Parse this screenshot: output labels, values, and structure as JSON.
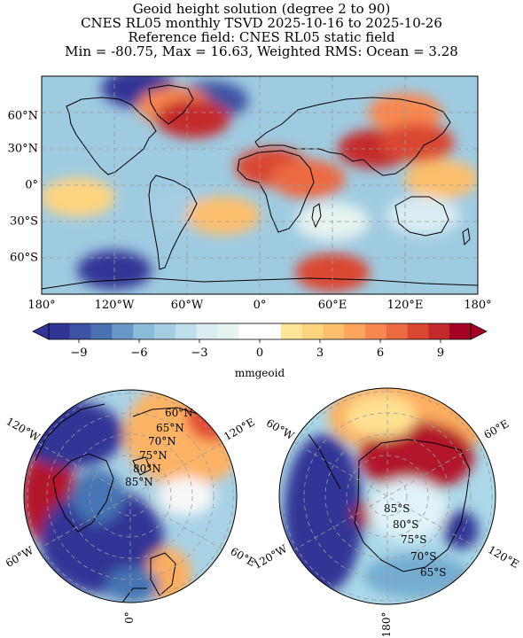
{
  "header": {
    "line1": "Geoid height solution (degree 2 to 90)",
    "line2": "CNES RL05 monthly TSVD 2025-10-16 to 2025-10-26",
    "line3": "Reference field: CNES RL05 static field",
    "line4": "Min = -80.75, Max = 16.63, Weighted RMS: Ocean = 3.28"
  },
  "chart_data": [
    {
      "type": "heatmap",
      "projection": "plate carree",
      "xlim": [
        -180,
        180
      ],
      "ylim": [
        -90,
        90
      ],
      "x_tick_labels": [
        "180°",
        "120°W",
        "60°W",
        "0°",
        "60°E",
        "120°E",
        "180°"
      ],
      "y_tick_labels": [
        "60°N",
        "30°N",
        "0°",
        "30°S",
        "60°S"
      ],
      "grid": true,
      "colorbar": {
        "label": "mmgeoid",
        "ticks": [
          "−9",
          "−6",
          "−3",
          "0",
          "3",
          "6",
          "9"
        ],
        "range": [
          -10.5,
          10.5
        ],
        "levels": 20,
        "extend": "both",
        "cmap": "RdYlBu_r"
      },
      "regions": [
        {
          "lon": -100,
          "lat": 80,
          "value": -10
        },
        {
          "lon": -40,
          "lat": 70,
          "value": -9
        },
        {
          "lon": -70,
          "lat": 65,
          "value": 6
        },
        {
          "lon": -55,
          "lat": 55,
          "value": 9
        },
        {
          "lon": 10,
          "lat": 15,
          "value": 8
        },
        {
          "lon": 40,
          "lat": 5,
          "value": 7
        },
        {
          "lon": 95,
          "lat": 30,
          "value": 9
        },
        {
          "lon": 120,
          "lat": 60,
          "value": 6
        },
        {
          "lon": 130,
          "lat": 35,
          "value": 8
        },
        {
          "lon": 150,
          "lat": 5,
          "value": 4
        },
        {
          "lon": -60,
          "lat": -20,
          "value": -5
        },
        {
          "lon": -30,
          "lat": -25,
          "value": 4
        },
        {
          "lon": 135,
          "lat": -25,
          "value": -3
        },
        {
          "lon": -120,
          "lat": -70,
          "value": -10
        },
        {
          "lon": 60,
          "lat": -72,
          "value": 8
        },
        {
          "lon": -150,
          "lat": -10,
          "value": 3
        },
        {
          "lon": 60,
          "lat": -30,
          "value": -2
        }
      ]
    },
    {
      "type": "heatmap",
      "projection": "north polar stereographic",
      "lat_labels": [
        "60°N",
        "65°N",
        "70°N",
        "75°N",
        "80°N",
        "85°N"
      ],
      "lon_labels": [
        "120°W",
        "120°E",
        "60°W",
        "60°E",
        "0°"
      ]
    },
    {
      "type": "heatmap",
      "projection": "south polar stereographic",
      "lat_labels": [
        "85°S",
        "80°S",
        "75°S",
        "70°S",
        "65°S"
      ],
      "lon_labels": [
        "60°W",
        "60°E",
        "120°W",
        "120°E",
        "180°"
      ]
    }
  ]
}
